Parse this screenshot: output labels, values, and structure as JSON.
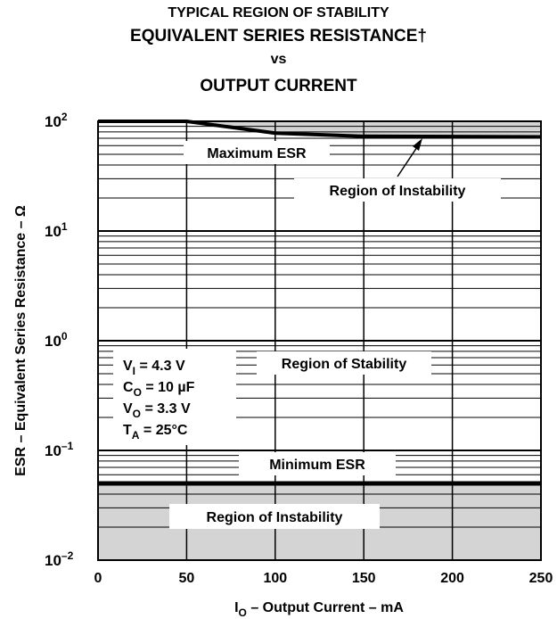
{
  "chart_data": {
    "type": "line",
    "title_lines": [
      "TYPICAL REGION OF STABILITY",
      "EQUIVALENT SERIES RESISTANCE†",
      "vs",
      "OUTPUT CURRENT"
    ],
    "xlabel": {
      "main": "I",
      "sub": "O",
      "rest": " – Output Current – mA"
    },
    "ylabel": "ESR – Equivalent Series Resistance – Ω",
    "xlim": [
      0,
      250
    ],
    "ylim": [
      0.01,
      100
    ],
    "yscale": "log",
    "grid": true,
    "x_ticks": [
      "0",
      "50",
      "100",
      "150",
      "200",
      "250"
    ],
    "y_ticks": [
      {
        "base": "10",
        "exp": "2"
      },
      {
        "base": "10",
        "exp": "1"
      },
      {
        "base": "10",
        "exp": "0"
      },
      {
        "base": "10",
        "exp": "–1"
      },
      {
        "base": "10",
        "exp": "–2"
      }
    ],
    "series": [
      {
        "name": "Maximum ESR",
        "x": [
          0,
          50,
          100,
          150,
          250
        ],
        "y": [
          100,
          100,
          78,
          73,
          72
        ]
      },
      {
        "name": "Minimum ESR",
        "x": [
          0,
          250
        ],
        "y": [
          0.05,
          0.05
        ]
      }
    ],
    "regions": {
      "upper_instability": "Region of Instability",
      "stability": "Region of Stability",
      "lower_instability": "Region of Instability"
    },
    "labels": {
      "max_esr": "Maximum ESR",
      "min_esr": "Minimum ESR"
    },
    "conditions": [
      {
        "sym": "V",
        "sub": "I",
        "val": " = 4.3 V"
      },
      {
        "sym": "C",
        "sub": "O",
        "val": " = 10 µF"
      },
      {
        "sym": "V",
        "sub": "O",
        "val": " = 3.3 V"
      },
      {
        "sym": "T",
        "sub": "A",
        "val": " = 25°C"
      }
    ],
    "colors": {
      "instability_fill": "#d4d4d4",
      "curve": "#000000",
      "grid": "#000000"
    }
  }
}
